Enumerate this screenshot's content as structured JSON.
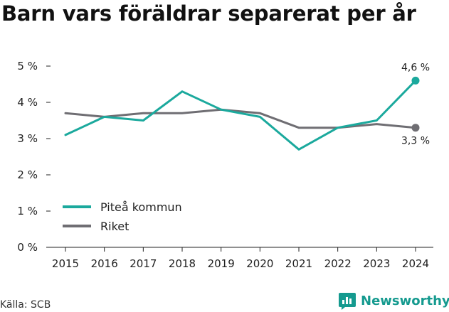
{
  "colors": {
    "series_pitea": "#1ba99d",
    "series_riket": "#6f6e73",
    "axis": "#222222",
    "brand": "#159a8f"
  },
  "brand_icon": "newsworthy-logo-icon",
  "brand_name": "Newsworthy",
  "source": "Källa: SCB",
  "chart_data": {
    "type": "line",
    "title": "Barn vars föräldrar separerat per år",
    "xlabel": "",
    "ylabel": "",
    "x": [
      2015,
      2016,
      2017,
      2018,
      2019,
      2020,
      2021,
      2022,
      2023,
      2024
    ],
    "x_tick_labels": [
      "2015",
      "2016",
      "2017",
      "2018",
      "2019",
      "2020",
      "2021",
      "2022",
      "2023",
      "2024"
    ],
    "ylim": [
      0,
      5
    ],
    "y_ticks": [
      0,
      1,
      2,
      3,
      4,
      5
    ],
    "y_tick_labels": [
      "0 %",
      "1 %",
      "2 %",
      "3 %",
      "4 %",
      "5 %"
    ],
    "grid": false,
    "legend_position": "bottom-left",
    "series": [
      {
        "name": "Piteå kommun",
        "color_key": "series_pitea",
        "values": [
          3.1,
          3.6,
          3.5,
          4.3,
          3.8,
          3.6,
          2.7,
          3.3,
          3.5,
          4.6
        ],
        "end_label": "4,6 %",
        "end_label_position": "above"
      },
      {
        "name": "Riket",
        "color_key": "series_riket",
        "values": [
          3.7,
          3.6,
          3.7,
          3.7,
          3.8,
          3.7,
          3.3,
          3.3,
          3.4,
          3.3
        ],
        "end_label": "3,3 %",
        "end_label_position": "below"
      }
    ]
  }
}
